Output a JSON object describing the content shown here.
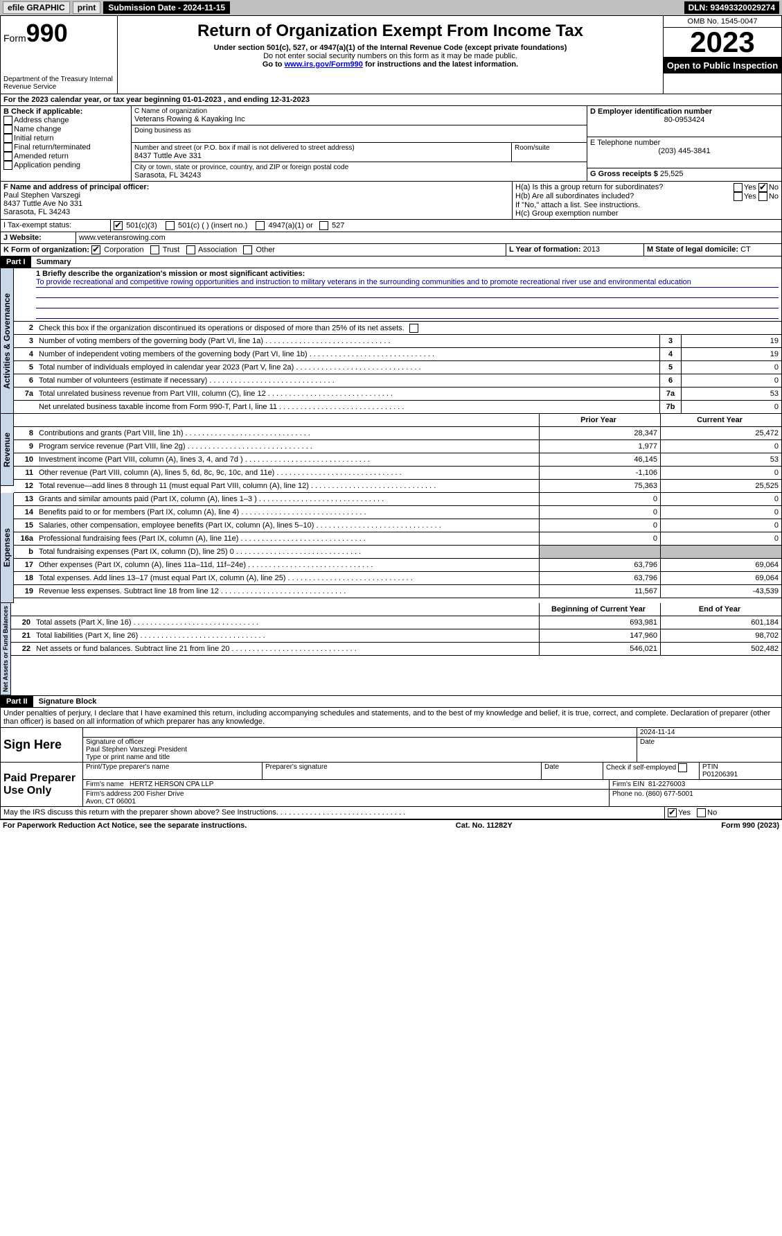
{
  "topbar": {
    "efile": "efile GRAPHIC",
    "print": "print",
    "submission_label": "Submission Date - 2024-11-15",
    "dln": "DLN: 93493320029274"
  },
  "header": {
    "form_label": "Form",
    "form_num": "990",
    "dept": "Department of the Treasury Internal Revenue Service",
    "title": "Return of Organization Exempt From Income Tax",
    "subtitle": "Under section 501(c), 527, or 4947(a)(1) of the Internal Revenue Code (except private foundations)",
    "note1": "Do not enter social security numbers on this form as it may be made public.",
    "note2_pre": "Go to ",
    "note2_link": "www.irs.gov/Form990",
    "note2_post": " for instructions and the latest information.",
    "omb": "OMB No. 1545-0047",
    "year": "2023",
    "inspect": "Open to Public Inspection"
  },
  "lineA": "For the 2023 calendar year, or tax year beginning 01-01-2023    , and ending 12-31-2023",
  "boxB": {
    "label": "B Check if applicable:",
    "items": [
      "Address change",
      "Name change",
      "Initial return",
      "Final return/terminated",
      "Amended return",
      "Application pending"
    ]
  },
  "boxC": {
    "label": "C Name of organization",
    "name": "Veterans Rowing & Kayaking Inc",
    "dba_label": "Doing business as",
    "addr_label": "Number and street (or P.O. box if mail is not delivered to street address)",
    "addr": "8437 Tuttle Ave 331",
    "room_label": "Room/suite",
    "city_label": "City or town, state or province, country, and ZIP or foreign postal code",
    "city": "Sarasota, FL  34243"
  },
  "boxD": {
    "label": "D Employer identification number",
    "val": "80-0953424"
  },
  "boxE": {
    "label": "E Telephone number",
    "val": "(203) 445-3841"
  },
  "boxG": {
    "label": "G Gross receipts $",
    "val": "25,525"
  },
  "boxF": {
    "label": "F  Name and address of principal officer:",
    "name": "Paul Stephen Varszegi",
    "addr": "8437 Tuttle Ave No 331",
    "city": "Sarasota, FL  34243"
  },
  "boxH": {
    "a": "H(a)  Is this a group return for subordinates?",
    "b": "H(b)  Are all subordinates included?",
    "bnote": "If \"No,\" attach a list. See instructions.",
    "c": "H(c)  Group exemption number",
    "yes": "Yes",
    "no": "No"
  },
  "boxI": {
    "label": "I   Tax-exempt status:",
    "c3": "501(c)(3)",
    "c": "501(c) (  ) (insert no.)",
    "a1": "4947(a)(1) or",
    "s527": "527"
  },
  "boxJ": {
    "label": "J   Website:",
    "val": "www.veteransrowing.com"
  },
  "boxK": {
    "label": "K Form of organization:",
    "corp": "Corporation",
    "trust": "Trust",
    "assoc": "Association",
    "other": "Other"
  },
  "boxL": {
    "label": "L Year of formation:",
    "val": "2013"
  },
  "boxM": {
    "label": "M State of legal domicile:",
    "val": "CT"
  },
  "part1": {
    "label": "Part I",
    "title": "Summary"
  },
  "mission": {
    "label": "1  Briefly describe the organization's mission or most significant activities:",
    "text": "To provide recreational and competitive rowing opportunities and instruction to military veterans in the surrounding communities and to promote recreational river use and environmental education"
  },
  "line2": "Check this box        if the organization discontinued its operations or disposed of more than 25% of its net assets.",
  "lines_single": [
    {
      "n": "3",
      "d": "Number of voting members of the governing body (Part VI, line 1a)",
      "b": "3",
      "v": "19"
    },
    {
      "n": "4",
      "d": "Number of independent voting members of the governing body (Part VI, line 1b)",
      "b": "4",
      "v": "19"
    },
    {
      "n": "5",
      "d": "Total number of individuals employed in calendar year 2023 (Part V, line 2a)",
      "b": "5",
      "v": "0"
    },
    {
      "n": "6",
      "d": "Total number of volunteers (estimate if necessary)",
      "b": "6",
      "v": "0"
    },
    {
      "n": "7a",
      "d": "Total unrelated business revenue from Part VIII, column (C), line 12",
      "b": "7a",
      "v": "53"
    },
    {
      "n": "",
      "d": "Net unrelated business taxable income from Form 990-T, Part I, line 11",
      "b": "7b",
      "v": "0"
    }
  ],
  "col_prior": "Prior Year",
  "col_current": "Current Year",
  "revenue": [
    {
      "n": "8",
      "d": "Contributions and grants (Part VIII, line 1h)",
      "p": "28,347",
      "c": "25,472"
    },
    {
      "n": "9",
      "d": "Program service revenue (Part VIII, line 2g)",
      "p": "1,977",
      "c": "0"
    },
    {
      "n": "10",
      "d": "Investment income (Part VIII, column (A), lines 3, 4, and 7d )",
      "p": "46,145",
      "c": "53"
    },
    {
      "n": "11",
      "d": "Other revenue (Part VIII, column (A), lines 5, 6d, 8c, 9c, 10c, and 11e)",
      "p": "-1,106",
      "c": "0"
    },
    {
      "n": "12",
      "d": "Total revenue—add lines 8 through 11 (must equal Part VIII, column (A), line 12)",
      "p": "75,363",
      "c": "25,525"
    }
  ],
  "expenses": [
    {
      "n": "13",
      "d": "Grants and similar amounts paid (Part IX, column (A), lines 1–3 )",
      "p": "0",
      "c": "0"
    },
    {
      "n": "14",
      "d": "Benefits paid to or for members (Part IX, column (A), line 4)",
      "p": "0",
      "c": "0"
    },
    {
      "n": "15",
      "d": "Salaries, other compensation, employee benefits (Part IX, column (A), lines 5–10)",
      "p": "0",
      "c": "0"
    },
    {
      "n": "16a",
      "d": "Professional fundraising fees (Part IX, column (A), line 11e)",
      "p": "0",
      "c": "0"
    },
    {
      "n": "b",
      "d": "Total fundraising expenses (Part IX, column (D), line 25) 0",
      "p": "GREY",
      "c": "GREY"
    },
    {
      "n": "17",
      "d": "Other expenses (Part IX, column (A), lines 11a–11d, 11f–24e)",
      "p": "63,796",
      "c": "69,064"
    },
    {
      "n": "18",
      "d": "Total expenses. Add lines 13–17 (must equal Part IX, column (A), line 25)",
      "p": "63,796",
      "c": "69,064"
    },
    {
      "n": "19",
      "d": "Revenue less expenses. Subtract line 18 from line 12",
      "p": "11,567",
      "c": "-43,539"
    }
  ],
  "col_begin": "Beginning of Current Year",
  "col_end": "End of Year",
  "netassets": [
    {
      "n": "20",
      "d": "Total assets (Part X, line 16)",
      "p": "693,981",
      "c": "601,184"
    },
    {
      "n": "21",
      "d": "Total liabilities (Part X, line 26)",
      "p": "147,960",
      "c": "98,702"
    },
    {
      "n": "22",
      "d": "Net assets or fund balances. Subtract line 21 from line 20",
      "p": "546,021",
      "c": "502,482"
    }
  ],
  "part2": {
    "label": "Part II",
    "title": "Signature Block"
  },
  "penalties": "Under penalties of perjury, I declare that I have examined this return, including accompanying schedules and statements, and to the best of my knowledge and belief, it is true, correct, and complete. Declaration of preparer (other than officer) is based on all information of which preparer has any knowledge.",
  "sign": {
    "label": "Sign Here",
    "sig_label": "Signature of officer",
    "date_label": "Date",
    "date": "2024-11-14",
    "name": "Paul Stephen Varszegi President",
    "type_label": "Type or print name and title"
  },
  "paid": {
    "label": "Paid Preparer Use Only",
    "print_label": "Print/Type preparer's name",
    "sig_label": "Preparer's signature",
    "date_label": "Date",
    "check_label": "Check          if self-employed",
    "ptin_label": "PTIN",
    "ptin": "P01206391",
    "firm_name_label": "Firm's name",
    "firm_name": "HERTZ HERSON CPA LLP",
    "firm_ein_label": "Firm's EIN",
    "firm_ein": "81-2276003",
    "firm_addr_label": "Firm's address",
    "firm_addr": "200 Fisher Drive",
    "firm_city": "Avon, CT  06001",
    "phone_label": "Phone no.",
    "phone": "(860) 677-5001"
  },
  "discuss": "May the IRS discuss this return with the preparer shown above? See Instructions.",
  "footer": {
    "left": "For Paperwork Reduction Act Notice, see the separate instructions.",
    "mid": "Cat. No. 11282Y",
    "right": "Form 990 (2023)"
  },
  "vtabs": {
    "ag": "Activities & Governance",
    "rev": "Revenue",
    "exp": "Expenses",
    "net": "Net Assets or Fund Balances"
  }
}
